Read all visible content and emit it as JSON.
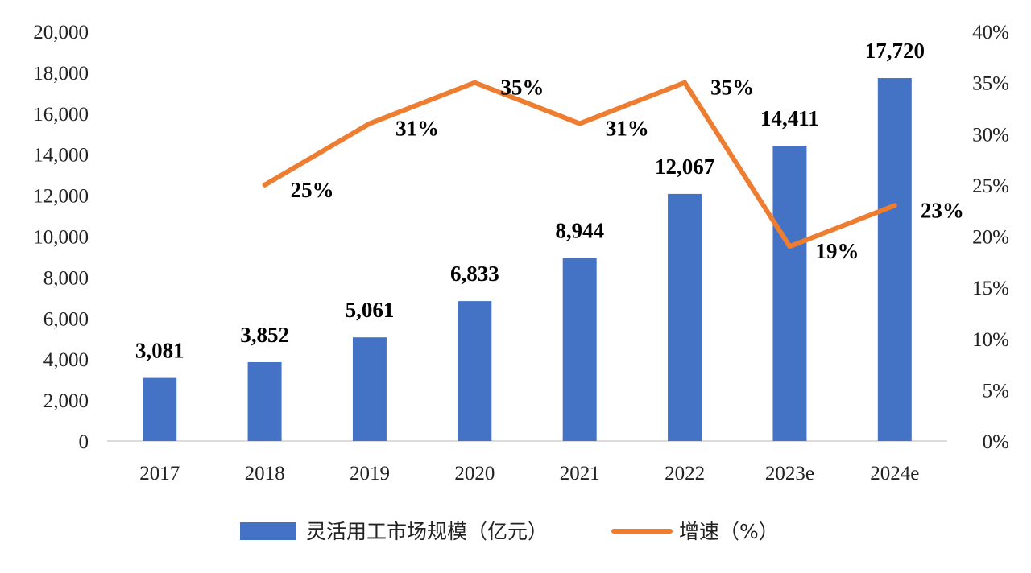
{
  "chart_data": {
    "type": "bar",
    "categories": [
      "2017",
      "2018",
      "2019",
      "2020",
      "2021",
      "2022",
      "2023e",
      "2024e"
    ],
    "series": [
      {
        "name": "灵活用工市场规模（亿元）",
        "type": "bar",
        "axis": "left",
        "color": "#4472C4",
        "values": [
          3081,
          3852,
          5061,
          6833,
          8944,
          12067,
          14411,
          17720
        ],
        "labels": [
          "3,081",
          "3,852",
          "5,061",
          "6,833",
          "8,944",
          "12,067",
          "14,411",
          "17,720"
        ]
      },
      {
        "name": "增速（%）",
        "type": "line",
        "axis": "right",
        "color": "#ED7D31",
        "values": [
          null,
          25,
          31,
          35,
          31,
          35,
          19,
          23
        ],
        "labels": [
          "",
          "25%",
          "31%",
          "35%",
          "31%",
          "35%",
          "19%",
          "23%"
        ]
      }
    ],
    "left_axis": {
      "ylim": [
        0,
        20000
      ],
      "ticks": [
        "0",
        "2,000",
        "4,000",
        "6,000",
        "8,000",
        "10,000",
        "12,000",
        "14,000",
        "16,000",
        "18,000",
        "20,000"
      ]
    },
    "right_axis": {
      "ylim": [
        0,
        40
      ],
      "ticks": [
        "0%",
        "5%",
        "10%",
        "15%",
        "20%",
        "25%",
        "30%",
        "35%",
        "40%"
      ]
    },
    "grid": false,
    "legend": "bottom"
  }
}
